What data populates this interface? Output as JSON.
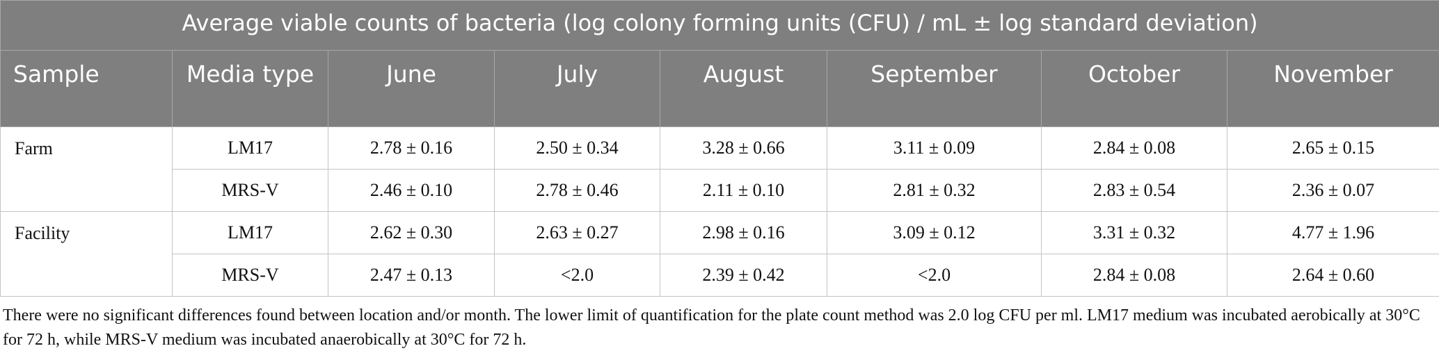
{
  "table": {
    "title": "Average viable counts of bacteria (log colony forming units (CFU) / mL ± log standard deviation)",
    "headers": [
      "Sample",
      "Media type",
      "June",
      "July",
      "August",
      "September",
      "October",
      "November"
    ],
    "groups": [
      {
        "sample": "Farm",
        "rows": [
          {
            "media": "LM17",
            "values": [
              "2.78 ± 0.16",
              "2.50 ± 0.34",
              "3.28 ± 0.66",
              "3.11 ± 0.09",
              "2.84 ± 0.08",
              "2.65 ± 0.15"
            ]
          },
          {
            "media": "MRS-V",
            "values": [
              "2.46 ± 0.10",
              "2.78 ± 0.46",
              "2.11 ± 0.10",
              "2.81 ± 0.32",
              "2.83 ± 0.54",
              "2.36 ± 0.07"
            ]
          }
        ]
      },
      {
        "sample": "Facility",
        "rows": [
          {
            "media": "LM17",
            "values": [
              "2.62 ± 0.30",
              "2.63 ± 0.27",
              "2.98 ± 0.16",
              "3.09 ± 0.12",
              "3.31 ± 0.32",
              "4.77 ± 1.96"
            ]
          },
          {
            "media": "MRS-V",
            "values": [
              "2.47 ± 0.13",
              "<2.0",
              "2.39 ± 0.42",
              "<2.0",
              "2.84 ± 0.08",
              "2.64 ± 0.60"
            ]
          }
        ]
      }
    ]
  },
  "footnote": "There were no significant differences found between location and/or month. The lower limit of quantification for the plate count method was 2.0 log CFU per ml. LM17 medium was incubated aerobically at 30°C for 72 h, while MRS-V medium was incubated anaerobically at 30°C for 72 h."
}
